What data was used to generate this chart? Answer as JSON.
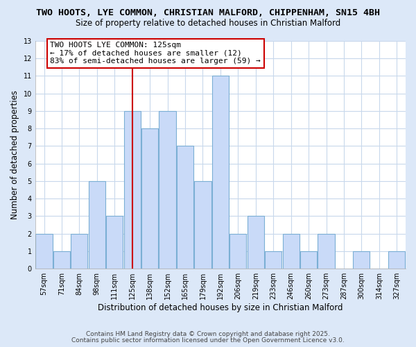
{
  "title": "TWO HOOTS, LYE COMMON, CHRISTIAN MALFORD, CHIPPENHAM, SN15 4BH",
  "subtitle": "Size of property relative to detached houses in Christian Malford",
  "xlabel": "Distribution of detached houses by size in Christian Malford",
  "ylabel": "Number of detached properties",
  "bin_labels": [
    "57sqm",
    "71sqm",
    "84sqm",
    "98sqm",
    "111sqm",
    "125sqm",
    "138sqm",
    "152sqm",
    "165sqm",
    "179sqm",
    "192sqm",
    "206sqm",
    "219sqm",
    "233sqm",
    "246sqm",
    "260sqm",
    "273sqm",
    "287sqm",
    "300sqm",
    "314sqm",
    "327sqm"
  ],
  "bar_heights": [
    2,
    1,
    2,
    5,
    3,
    9,
    8,
    9,
    7,
    5,
    11,
    2,
    3,
    1,
    2,
    1,
    2,
    0,
    1,
    0,
    1
  ],
  "bar_color": "#c9daf8",
  "bar_edge_color": "#7bafd4",
  "vline_x_index": 5,
  "vline_color": "#cc0000",
  "annotation_text": "TWO HOOTS LYE COMMON: 125sqm\n← 17% of detached houses are smaller (12)\n83% of semi-detached houses are larger (59) →",
  "annotation_box_color": "#ffffff",
  "annotation_box_edge": "#cc0000",
  "ylim": [
    0,
    13
  ],
  "yticks": [
    0,
    1,
    2,
    3,
    4,
    5,
    6,
    7,
    8,
    9,
    10,
    11,
    12,
    13
  ],
  "grid_color": "#c8d8ec",
  "background_color": "#dce8f8",
  "plot_bg_color": "#ffffff",
  "footer1": "Contains HM Land Registry data © Crown copyright and database right 2025.",
  "footer2": "Contains public sector information licensed under the Open Government Licence v3.0.",
  "title_fontsize": 9.5,
  "subtitle_fontsize": 8.5,
  "tick_fontsize": 7,
  "ylabel_fontsize": 8.5,
  "xlabel_fontsize": 8.5,
  "annotation_fontsize": 8
}
